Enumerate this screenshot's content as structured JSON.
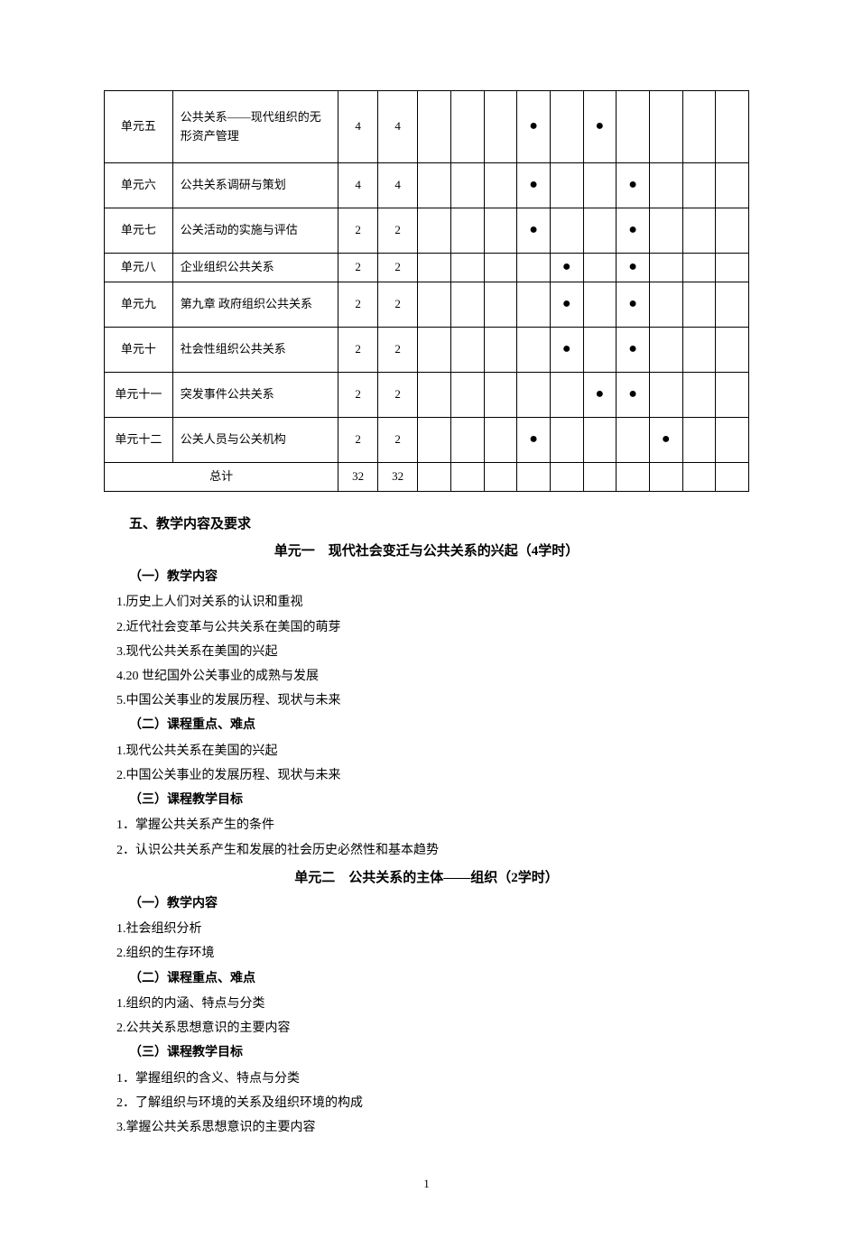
{
  "dot": "●",
  "table": {
    "rows": [
      {
        "unit": "单元五",
        "title": "公共关系——现代组织的无形资产管理",
        "n1": "4",
        "n2": "4",
        "marks": [
          "",
          "",
          "",
          "●",
          "",
          "●",
          "",
          "",
          "",
          ""
        ],
        "h": "tall"
      },
      {
        "unit": "单元六",
        "title": "公共关系调研与策划",
        "n1": "4",
        "n2": "4",
        "marks": [
          "",
          "",
          "",
          "●",
          "",
          "",
          "●",
          "",
          "",
          ""
        ],
        "h": "med"
      },
      {
        "unit": "单元七",
        "title": "公关活动的实施与评估",
        "n1": "2",
        "n2": "2",
        "marks": [
          "",
          "",
          "",
          "●",
          "",
          "",
          "●",
          "",
          "",
          ""
        ],
        "h": "med"
      },
      {
        "unit": "单元八",
        "title": "企业组织公共关系",
        "n1": "2",
        "n2": "2",
        "marks": [
          "",
          "",
          "",
          "",
          "●",
          "",
          "●",
          "",
          "",
          ""
        ],
        "h": ""
      },
      {
        "unit": "单元九",
        "title": "第九章 政府组织公共关系",
        "n1": "2",
        "n2": "2",
        "marks": [
          "",
          "",
          "",
          "",
          "●",
          "",
          "●",
          "",
          "",
          ""
        ],
        "h": "med"
      },
      {
        "unit": "单元十",
        "title": "社会性组织公共关系",
        "n1": "2",
        "n2": "2",
        "marks": [
          "",
          "",
          "",
          "",
          "●",
          "",
          "●",
          "",
          "",
          ""
        ],
        "h": "med"
      },
      {
        "unit": "单元十一",
        "title": "突发事件公共关系",
        "n1": "2",
        "n2": "2",
        "marks": [
          "",
          "",
          "",
          "",
          "",
          "●",
          "●",
          "",
          "",
          ""
        ],
        "h": "med"
      },
      {
        "unit": "单元十二",
        "title": "公关人员与公关机构",
        "n1": "2",
        "n2": "2",
        "marks": [
          "",
          "",
          "",
          "●",
          "",
          "",
          "",
          "●",
          "",
          ""
        ],
        "h": "med"
      }
    ],
    "total_label": "总计",
    "total_n1": "32",
    "total_n2": "32"
  },
  "s1_heading": "五、教学内容及要求",
  "u1_heading": "单元一　现代社会变迁与公共关系的兴起（4学时）",
  "u1_s1": "（一）教学内容",
  "u1_s1_items": [
    "1.历史上人们对关系的认识和重视",
    "2.近代社会变革与公共关系在美国的萌芽",
    "3.现代公共关系在美国的兴起",
    "4.20 世纪国外公关事业的成熟与发展",
    "5.中国公关事业的发展历程、现状与未来"
  ],
  "u1_s2": "（二）课程重点、难点",
  "u1_s2_items": [
    "1.现代公共关系在美国的兴起",
    "2.中国公关事业的发展历程、现状与未来"
  ],
  "u1_s3": "（三）课程教学目标",
  "u1_s3_items": [
    "1．掌握公共关系产生的条件",
    "2．认识公共关系产生和发展的社会历史必然性和基本趋势"
  ],
  "u2_heading": "单元二　公共关系的主体——组织（2学时）",
  "u2_s1": "（一）教学内容",
  "u2_s1_items": [
    "1.社会组织分析",
    "2.组织的生存环境"
  ],
  "u2_s2": "（二）课程重点、难点",
  "u2_s2_items": [
    "1.组织的内涵、特点与分类",
    "2.公共关系思想意识的主要内容"
  ],
  "u2_s3": "（三）课程教学目标",
  "u2_s3_items": [
    "1．掌握组织的含义、特点与分类",
    "2．了解组织与环境的关系及组织环境的构成",
    "3.掌握公共关系思想意识的主要内容"
  ],
  "page_number": "1"
}
